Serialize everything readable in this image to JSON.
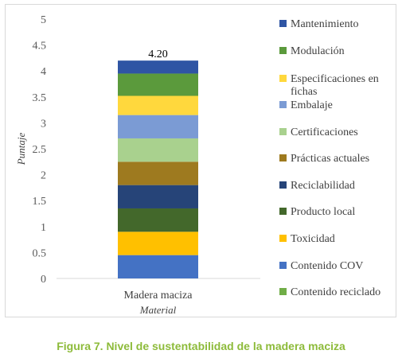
{
  "caption": "Figura 7. Nivel de sustentabilidad de la madera maciza",
  "chart_data": {
    "type": "bar",
    "stacked": true,
    "categories": [
      "Madera maciza"
    ],
    "xlabel": "Material",
    "ylabel": "Puntaje",
    "ylim": [
      0,
      5
    ],
    "yticks": [
      "0",
      "0.5",
      "1",
      "1.5",
      "2",
      "2.5",
      "3",
      "3.5",
      "4",
      "4.5",
      "5"
    ],
    "grid": false,
    "legend_position": "right",
    "total_label": "4.20",
    "series": [
      {
        "name": "Contenido reciclado",
        "values": [
          0
        ],
        "color": "#70ad47"
      },
      {
        "name": "Contenido COV",
        "values": [
          0.45
        ],
        "color": "#4472c4"
      },
      {
        "name": "Toxicidad",
        "values": [
          0.45
        ],
        "color": "#ffc000"
      },
      {
        "name": "Producto local",
        "values": [
          0.45
        ],
        "color": "#43682b"
      },
      {
        "name": "Reciclabilidad",
        "values": [
          0.45
        ],
        "color": "#264478"
      },
      {
        "name": "Prácticas actuales",
        "values": [
          0.45
        ],
        "color": "#9e7a1f"
      },
      {
        "name": "Certificaciones",
        "values": [
          0.45
        ],
        "color": "#a9d18e"
      },
      {
        "name": "Embalaje",
        "values": [
          0.45
        ],
        "color": "#7b9bd4"
      },
      {
        "name": "Especificaciones en fichas",
        "values": [
          0.37
        ],
        "color": "#ffd83d"
      },
      {
        "name": "Modulación",
        "values": [
          0.43
        ],
        "color": "#5b9a3c"
      },
      {
        "name": "Mantenimiento",
        "values": [
          0.25
        ],
        "color": "#2f55a4"
      }
    ]
  }
}
